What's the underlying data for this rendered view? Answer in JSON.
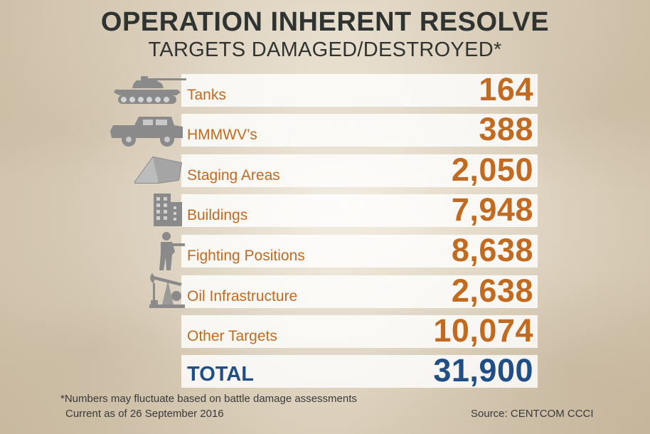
{
  "header": {
    "title": "OPERATION INHERENT RESOLVE",
    "subtitle": "TARGETS DAMAGED/DESTROYED*"
  },
  "chart_data": {
    "type": "table",
    "title": "OPERATION INHERENT RESOLVE",
    "subtitle": "TARGETS DAMAGED/DESTROYED*",
    "rows": [
      {
        "label": "Tanks",
        "value": "164",
        "icon": "tank-icon"
      },
      {
        "label": "HMMWV’s",
        "value": "388",
        "icon": "humvee-icon"
      },
      {
        "label": "Staging Areas",
        "value": "2,050",
        "icon": "tent-icon"
      },
      {
        "label": "Buildings",
        "value": "7,948",
        "icon": "building-icon"
      },
      {
        "label": "Fighting Positions",
        "value": "8,638",
        "icon": "soldier-icon"
      },
      {
        "label": "Oil Infrastructure",
        "value": "2,638",
        "icon": "oil-pump-icon"
      },
      {
        "label": "Other Targets",
        "value": "10,074",
        "icon": ""
      }
    ],
    "total": {
      "label": "TOTAL",
      "value": "31,900"
    },
    "colors": {
      "row_text": "#c26a1f",
      "total_text": "#1f4f86",
      "title_text": "#2f3432",
      "icon_gray": "#8a8a8a"
    }
  },
  "footer": {
    "note": "*Numbers may fluctuate based on battle damage assessments",
    "as_of": "Current as of 26 September 2016",
    "source": "Source: CENTCOM CCCI"
  }
}
